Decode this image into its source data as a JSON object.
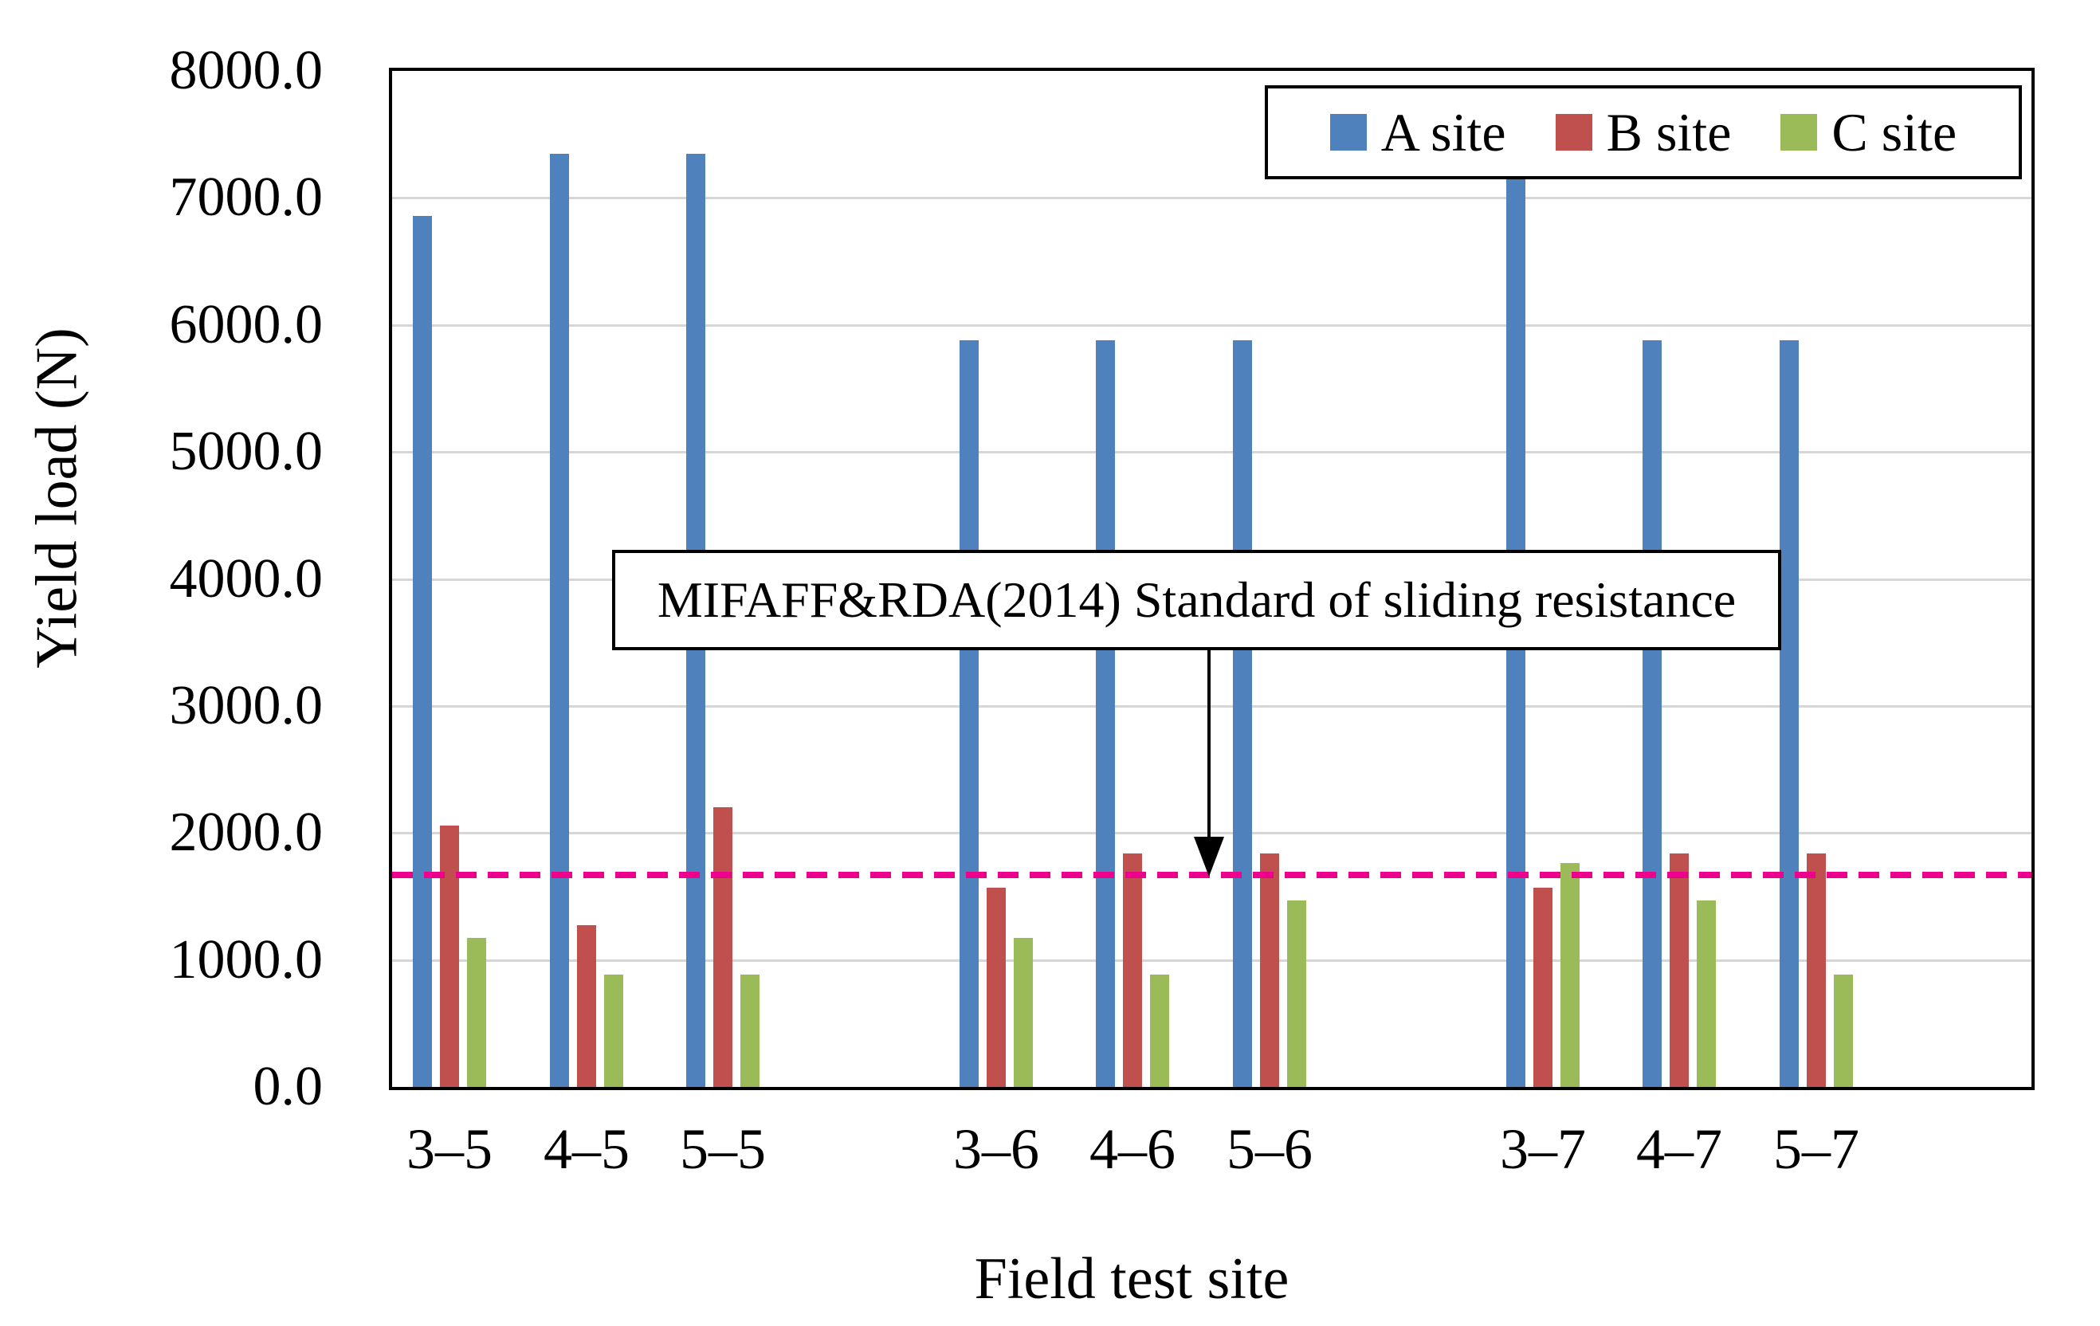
{
  "chart_data": {
    "type": "bar",
    "categories": [
      "3–5",
      "4–5",
      "5–5",
      "3–6",
      "4–6",
      "5–6",
      "3–7",
      "4–7",
      "5–7"
    ],
    "category_groups": [
      [
        0,
        1,
        2
      ],
      [
        3,
        4,
        5
      ],
      [
        6,
        7,
        8
      ]
    ],
    "series": [
      {
        "name": "A site",
        "color": "#4F81BD",
        "values": [
          6860,
          7350,
          7350,
          5880,
          5880,
          5880,
          7350,
          5880,
          5880
        ]
      },
      {
        "name": "B site",
        "color": "#C0504D",
        "values": [
          2058,
          1274,
          2205,
          1568,
          1838,
          1838,
          1568,
          1838,
          1838
        ]
      },
      {
        "name": "C site",
        "color": "#9BBB59",
        "values": [
          1176,
          882,
          882,
          1176,
          882,
          1470,
          1764,
          1470,
          882
        ]
      }
    ],
    "xlabel": "Field test site",
    "ylabel": "Yield load (N)",
    "ylim": [
      0,
      8000
    ],
    "ytick_step": 1000,
    "ytick_labels": [
      "8000.0",
      "7000.0",
      "6000.0",
      "5000.0",
      "4000.0",
      "3000.0",
      "2000.0",
      "1000.0",
      "0.0"
    ],
    "grid": true,
    "legend_position": "top-right",
    "reference_line": {
      "value": 1666,
      "color": "#EC008C",
      "style": "dashed",
      "label": "MIFAFF&RDA(2014) Standard of sliding resistance"
    }
  }
}
